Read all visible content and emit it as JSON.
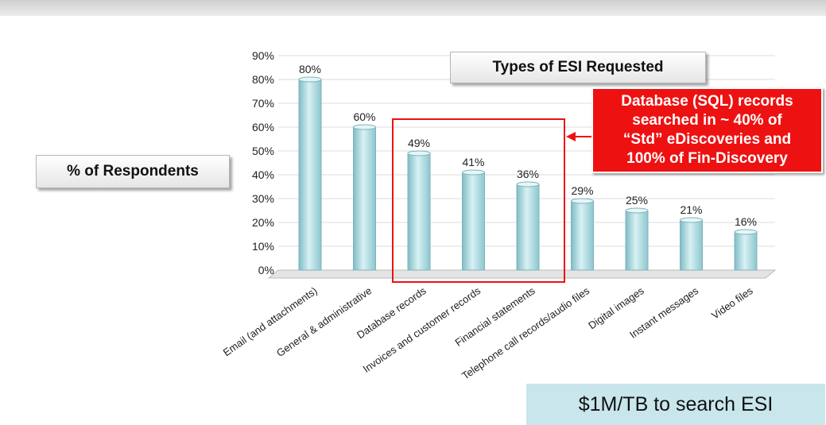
{
  "chart_data": {
    "type": "bar",
    "title": "Types of ESI Requested",
    "ylabel": "% of Respondents",
    "xlabel": "",
    "ylim": [
      0,
      90
    ],
    "yticks": [
      "0%",
      "10%",
      "20%",
      "30%",
      "40%",
      "50%",
      "60%",
      "70%",
      "80%",
      "90%"
    ],
    "grid": true,
    "categories": [
      "Email (and attachments)",
      "General & administrative",
      "Database records",
      "Invoices and customer records",
      "Financial statements",
      "Telephone call records/audio files",
      "Digital images",
      "Instant messages",
      "Video files"
    ],
    "values": [
      80,
      60,
      49,
      41,
      36,
      29,
      25,
      21,
      16
    ],
    "value_labels": [
      "80%",
      "60%",
      "49%",
      "41%",
      "36%",
      "29%",
      "25%",
      "21%",
      "16%"
    ],
    "bar_color": "#a8d8df",
    "highlight_color": "#ee1111",
    "annotation": {
      "lines": [
        "Database (SQL) records",
        "searched in ~ 40% of",
        "“Std” eDiscoveries and",
        "100% of Fin-Discovery"
      ]
    }
  },
  "note": "$1M/TB to search ESI"
}
